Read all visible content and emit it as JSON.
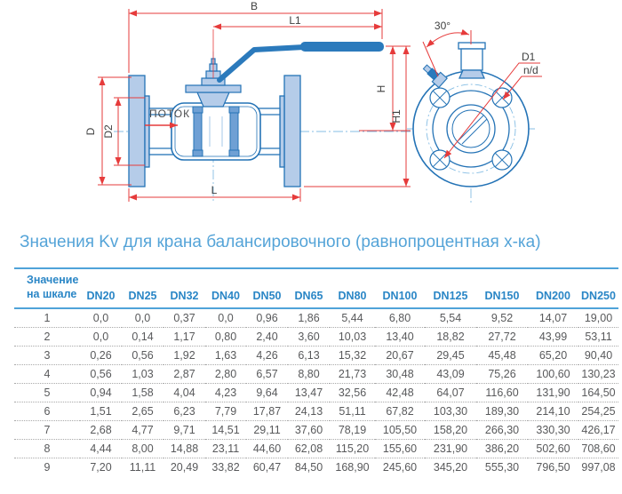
{
  "drawing": {
    "dims": {
      "B": "B",
      "L1": "L1",
      "H": "H",
      "H1": "H1",
      "L": "L",
      "D": "D",
      "D2": "D2",
      "D1": "D1",
      "nd": "n/d",
      "angle": "30°"
    },
    "flow_label": "ПОТОК",
    "colors": {
      "line_blue": "#2473b6",
      "fill_light_blue": "#b5cce9",
      "handle_blue": "#2b7abc",
      "dim_red": "#e63b3b",
      "centerline_blue": "#85bde4",
      "label_gray": "#3f4040"
    }
  },
  "kv_table": {
    "title": "Значения Kv для крана балансировочного (равнопроцентная х-ка)",
    "scale_header": [
      "Значение",
      "на шкале"
    ],
    "dn_columns": [
      "DN20",
      "DN25",
      "DN32",
      "DN40",
      "DN50",
      "DN65",
      "DN80",
      "DN100",
      "DN125",
      "DN150",
      "DN200",
      "DN250"
    ],
    "rows": [
      {
        "scale": "1",
        "values": [
          "0,0",
          "0,0",
          "0,37",
          "0,0",
          "0,96",
          "1,86",
          "5,44",
          "6,80",
          "5,54",
          "9,52",
          "14,07",
          "19,00"
        ]
      },
      {
        "scale": "2",
        "values": [
          "0,0",
          "0,14",
          "1,17",
          "0,80",
          "2,40",
          "3,60",
          "10,03",
          "13,40",
          "18,82",
          "27,72",
          "43,99",
          "53,11"
        ]
      },
      {
        "scale": "3",
        "values": [
          "0,26",
          "0,56",
          "1,92",
          "1,63",
          "4,26",
          "6,13",
          "15,32",
          "20,67",
          "29,45",
          "45,48",
          "65,20",
          "90,40"
        ]
      },
      {
        "scale": "4",
        "values": [
          "0,56",
          "1,03",
          "2,87",
          "2,80",
          "6,57",
          "8,80",
          "21,73",
          "30,48",
          "43,09",
          "75,26",
          "100,60",
          "130,23"
        ]
      },
      {
        "scale": "5",
        "values": [
          "0,94",
          "1,58",
          "4,04",
          "4,23",
          "9,64",
          "13,47",
          "32,56",
          "42,48",
          "64,07",
          "116,60",
          "131,90",
          "164,50"
        ]
      },
      {
        "scale": "6",
        "values": [
          "1,51",
          "2,65",
          "6,23",
          "7,79",
          "17,87",
          "24,13",
          "51,11",
          "67,82",
          "103,30",
          "189,30",
          "214,10",
          "254,25"
        ]
      },
      {
        "scale": "7",
        "values": [
          "2,68",
          "4,77",
          "9,71",
          "14,51",
          "29,11",
          "37,60",
          "78,19",
          "105,50",
          "158,20",
          "266,30",
          "330,30",
          "426,17"
        ]
      },
      {
        "scale": "8",
        "values": [
          "4,44",
          "8,00",
          "14,88",
          "23,11",
          "44,60",
          "62,08",
          "115,20",
          "155,60",
          "231,90",
          "386,20",
          "502,60",
          "708,60"
        ]
      },
      {
        "scale": "9",
        "values": [
          "7,20",
          "11,11",
          "20,49",
          "33,82",
          "60,47",
          "84,50",
          "168,90",
          "245,60",
          "345,20",
          "555,30",
          "796,50",
          "997,08"
        ]
      }
    ]
  }
}
